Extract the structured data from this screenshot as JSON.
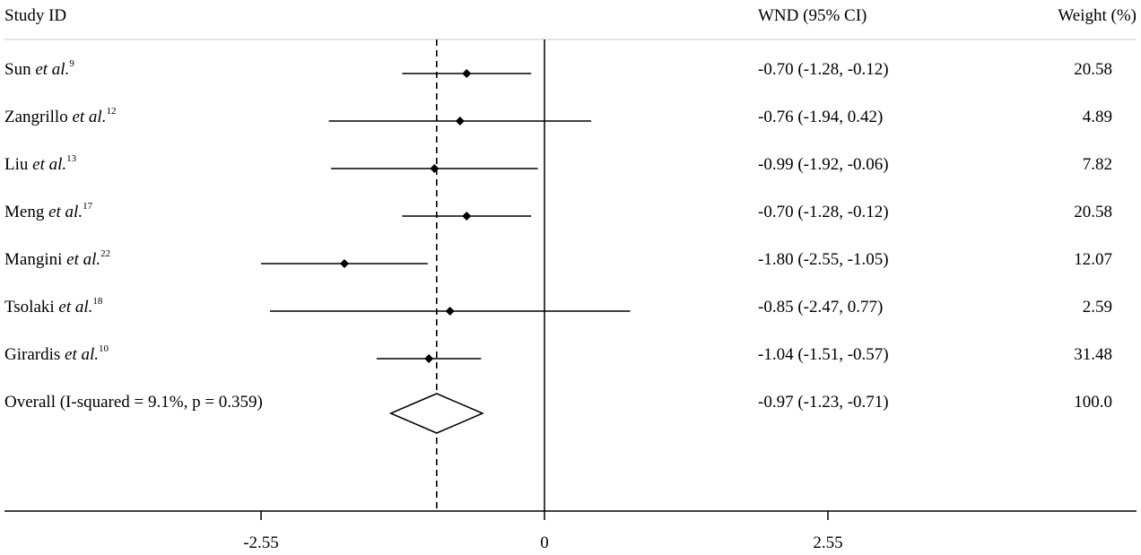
{
  "chart_data": {
    "type": "forest",
    "headers": {
      "study": "Study ID",
      "effect": "WND (95% CI)",
      "weight": "Weight (%)"
    },
    "studies": [
      {
        "label": "Sun ",
        "etal": "et al.",
        "ref": "9",
        "estimate": -0.7,
        "lower": -1.28,
        "upper": -0.12,
        "ci_text": "-0.70 (-1.28, -0.12)",
        "weight": "20.58"
      },
      {
        "label": "Zangrillo ",
        "etal": "et al.",
        "ref": "12",
        "estimate": -0.76,
        "lower": -1.94,
        "upper": 0.42,
        "ci_text": "-0.76 (-1.94, 0.42)",
        "weight": "4.89"
      },
      {
        "label": "Liu ",
        "etal": "et al.",
        "ref": "13",
        "estimate": -0.99,
        "lower": -1.92,
        "upper": -0.06,
        "ci_text": "-0.99 (-1.92, -0.06)",
        "weight": "7.82"
      },
      {
        "label": "Meng ",
        "etal": "et al.",
        "ref": "17",
        "estimate": -0.7,
        "lower": -1.28,
        "upper": -0.12,
        "ci_text": "-0.70 (-1.28, -0.12)",
        "weight": "20.58"
      },
      {
        "label": "Mangini ",
        "etal": "et al.",
        "ref": "22",
        "estimate": -1.8,
        "lower": -2.55,
        "upper": -1.05,
        "ci_text": "-1.80 (-2.55, -1.05)",
        "weight": "12.07"
      },
      {
        "label": "Tsolaki ",
        "etal": "et al.",
        "ref": "18",
        "estimate": -0.85,
        "lower": -2.47,
        "upper": 0.77,
        "ci_text": "-0.85 (-2.47, 0.77)",
        "weight": "2.59"
      },
      {
        "label": "Girardis ",
        "etal": "et al.",
        "ref": "10",
        "estimate": -1.04,
        "lower": -1.51,
        "upper": -0.57,
        "ci_text": "-1.04 (-1.51, -0.57)",
        "weight": "31.48"
      }
    ],
    "overall": {
      "label": "Overall (I-squared = 9.1%, p = 0.359)",
      "estimate": -0.97,
      "lower": -1.23,
      "upper": -0.71,
      "ci_text": "-0.97 (-1.23, -0.71)",
      "weight": "100.0"
    },
    "null_value": 0,
    "xlim": [
      -4.8,
      4.8
    ],
    "ticks": [
      -2.55,
      0,
      2.55
    ],
    "tick_labels": [
      "-2.55",
      "0",
      "2.55"
    ],
    "grid": false
  }
}
